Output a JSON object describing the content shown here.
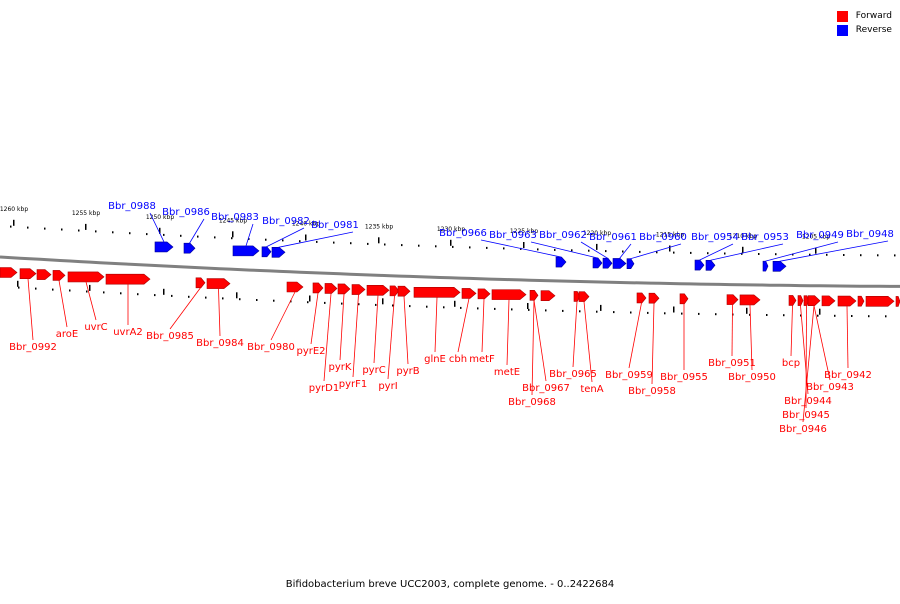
{
  "caption": "Bifidobacterium breve UCC2003, complete genome. - 0..2422684",
  "legend": [
    {
      "label": "Forward",
      "color": "#ff0000"
    },
    {
      "label": "Reverse",
      "color": "#0000ff"
    }
  ],
  "colors": {
    "forward": "#ff0000",
    "reverse": "#0000ff",
    "backbone": "#808080"
  },
  "ticks": [
    "1260 kbp",
    "1255 kbp",
    "1250 kbp",
    "1245 kbp",
    "1240 kbp",
    "1235 kbp",
    "1230 kbp",
    "1225 kbp",
    "1220 kbp",
    "1215 kbp",
    "1210 kbp",
    "1205 kbp"
  ],
  "genes_reverse": [
    "Bbr_0988",
    "Bbr_0986",
    "Bbr_0983",
    "Bbr_0982",
    "Bbr_0981",
    "Bbr_0966",
    "Bbr_0963",
    "Bbr_0962",
    "Bbr_0961",
    "Bbr_0960",
    "Bbr_0954",
    "Bbr_0953",
    "Bbr_0949",
    "Bbr_0948"
  ],
  "genes_forward": [
    "Bbr_0992",
    "aroE",
    "uvrC",
    "uvrA2",
    "Bbr_0985",
    "Bbr_0984",
    "Bbr_0980",
    "pyrE2",
    "pyrD1",
    "pyrK",
    "pyrF1",
    "pyrC",
    "pyrI",
    "pyrB",
    "glnE",
    "cbh",
    "metF",
    "metE",
    "Bbr_0967",
    "Bbr_0968",
    "Bbr_0965",
    "tenA",
    "Bbr_0959",
    "Bbr_0958",
    "Bbr_0955",
    "Bbr_0951",
    "Bbr_0950",
    "bcp",
    "Bbr_0944",
    "Bbr_0945",
    "Bbr_0946",
    "Bbr_0943",
    "Bbr_0942"
  ]
}
